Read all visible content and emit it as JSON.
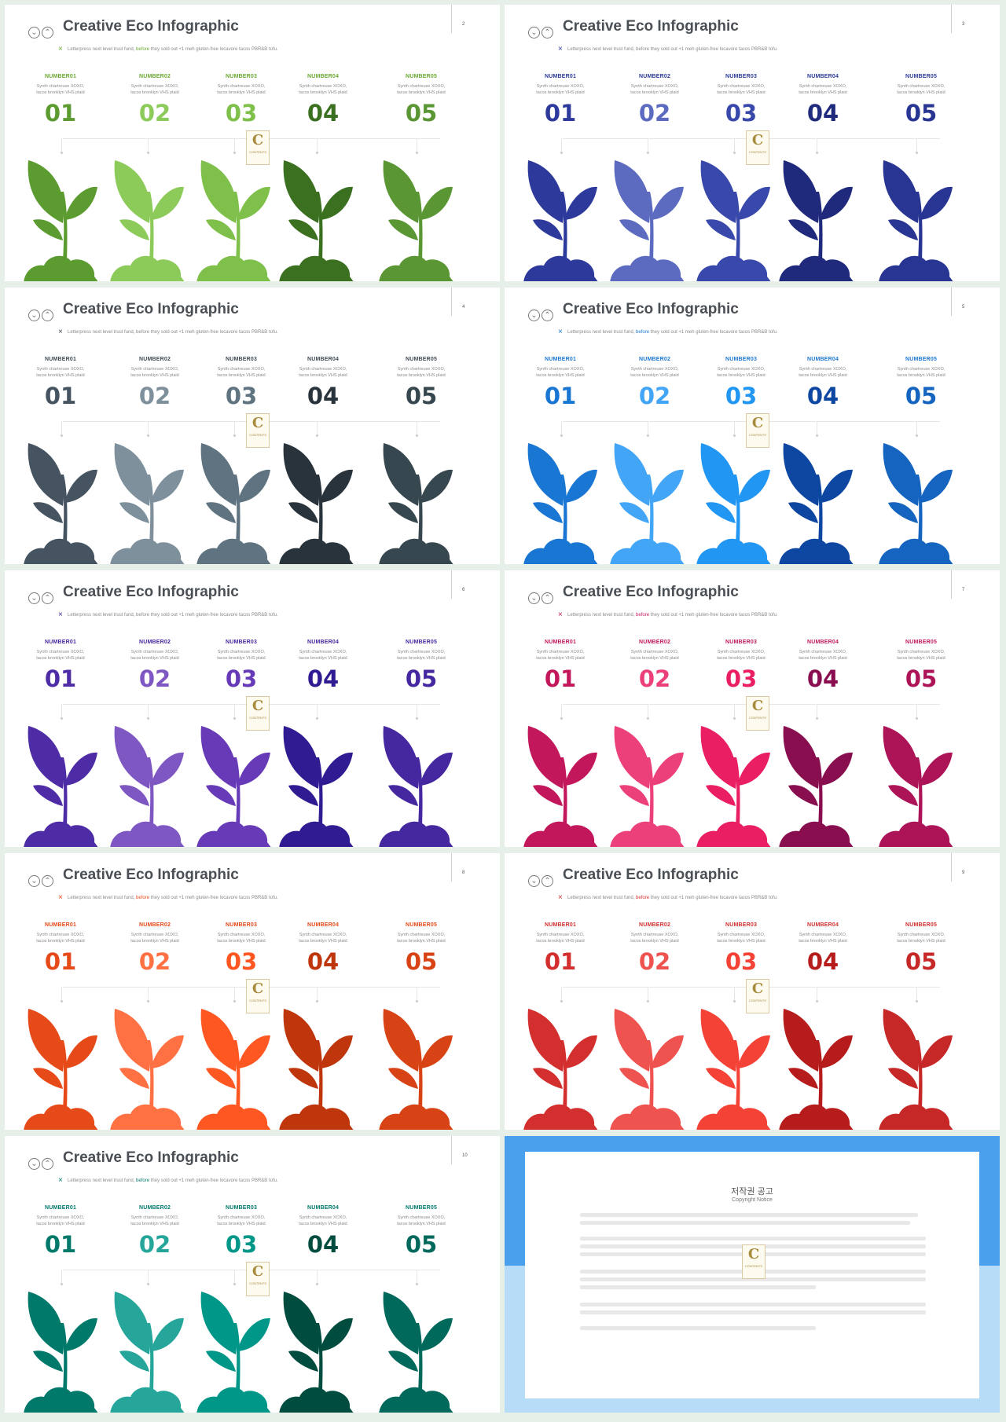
{
  "slides": [
    {
      "page": "2",
      "subtitle_pre": "Letterpress next level trust fund, ",
      "subtitle_hl": "before",
      "subtitle_post": " they sold out +1 meh gluten-free locavore tacos PBR&B tofu.",
      "accent": "#6aaa32",
      "hl": "#6aaa32",
      "colors": [
        "#5b9b2f",
        "#8ccb5a",
        "#7fc04b",
        "#3a7020",
        "#5a9633"
      ]
    },
    {
      "page": "3",
      "subtitle_pre": "Letterpress next level trust fund, ",
      "subtitle_hl": "before",
      "subtitle_post": " they sold out +1 meh gluten-free locavore tacos PBR&B tofu.",
      "accent": "#2c3b9a",
      "hl": "#8a8a8a",
      "colors": [
        "#2d3a9b",
        "#5c6bc0",
        "#3949ab",
        "#1f2a7c",
        "#283593"
      ]
    },
    {
      "page": "4",
      "subtitle_pre": "Letterpress next level trust fund, ",
      "subtitle_hl": "before",
      "subtitle_post": " they sold out +1 meh gluten-free locavore tacos PBR&B tofu.",
      "accent": "#3f4a54",
      "hl": "#8a8a8a",
      "colors": [
        "#455460",
        "#7e909b",
        "#5f7480",
        "#28333b",
        "#37474f"
      ]
    },
    {
      "page": "5",
      "subtitle_pre": "Letterpress next level trust fund, ",
      "subtitle_hl": "before",
      "subtitle_post": " they sold out +1 meh gluten-free locavore tacos PBR&B tofu.",
      "accent": "#1e78d2",
      "hl": "#1e78d2",
      "colors": [
        "#1976d2",
        "#42a5f5",
        "#2196f3",
        "#0d47a1",
        "#1565c0"
      ]
    },
    {
      "page": "6",
      "subtitle_pre": "Letterpress next level trust fund, ",
      "subtitle_hl": "before",
      "subtitle_post": " they sold out +1 meh gluten-free locavore tacos PBR&B tofu.",
      "accent": "#4527a0",
      "hl": "#8a8a8a",
      "colors": [
        "#4e2ca6",
        "#7e57c2",
        "#673ab7",
        "#311b92",
        "#4527a0"
      ]
    },
    {
      "page": "7",
      "subtitle_pre": "Letterpress next level trust fund, ",
      "subtitle_hl": "before",
      "subtitle_post": " they sold out +1 meh gluten-free locavore tacos PBR&B tofu.",
      "accent": "#c2185b",
      "hl": "#c2185b",
      "colors": [
        "#c2185b",
        "#ec407a",
        "#e91e63",
        "#880e4f",
        "#ad1457"
      ]
    },
    {
      "page": "8",
      "subtitle_pre": "Letterpress next level trust fund, ",
      "subtitle_hl": "before",
      "subtitle_post": " they sold out +1 meh gluten-free locavore tacos PBR&B tofu.",
      "accent": "#e64a19",
      "hl": "#e64a19",
      "colors": [
        "#e64a19",
        "#ff7043",
        "#ff5722",
        "#bf360c",
        "#d84315"
      ]
    },
    {
      "page": "9",
      "subtitle_pre": "Letterpress next level trust fund, ",
      "subtitle_hl": "before",
      "subtitle_post": " they sold out +1 meh gluten-free locavore tacos PBR&B tofu.",
      "accent": "#d32f2f",
      "hl": "#d32f2f",
      "colors": [
        "#d32f2f",
        "#ef5350",
        "#f44336",
        "#b71c1c",
        "#c62828"
      ]
    },
    {
      "page": "10",
      "subtitle_pre": "Letterpress next level trust fund, ",
      "subtitle_hl": "before",
      "subtitle_post": " they sold out +1 meh gluten-free locavore tacos PBR&B tofu.",
      "accent": "#00796b",
      "hl": "#00796b",
      "colors": [
        "#00796b",
        "#26a69a",
        "#009688",
        "#004d40",
        "#00695c"
      ]
    }
  ],
  "title": "Creative Eco Infographic",
  "logo_icon": "chevron-circles-icon",
  "items": [
    {
      "label": "NUMBER01",
      "desc1": "Synth chartreuse XOXO,",
      "desc2": "tacos brooklyn VHS plaid",
      "num": "01"
    },
    {
      "label": "NUMBER02",
      "desc1": "Synth chartreuse XOXO,",
      "desc2": "tacos brooklyn VHS plaid",
      "num": "02"
    },
    {
      "label": "NUMBER03",
      "desc1": "Synth chartreuse XOXO,",
      "desc2": "tacos brooklyn VHS plaid",
      "num": "03"
    },
    {
      "label": "NUMBER04",
      "desc1": "Synth chartreuse XOXO,",
      "desc2": "tacos brooklyn VHS plaid",
      "num": "04"
    },
    {
      "label": "NUMBER05",
      "desc1": "Synth chartreuse XOXO,",
      "desc2": "tacos brooklyn VHS plaid",
      "num": "05"
    }
  ],
  "badge": {
    "letter": "C",
    "text": "CONTENTS"
  },
  "notice": {
    "title": "저작권 공고",
    "subtitle": "Copyright Notice"
  }
}
